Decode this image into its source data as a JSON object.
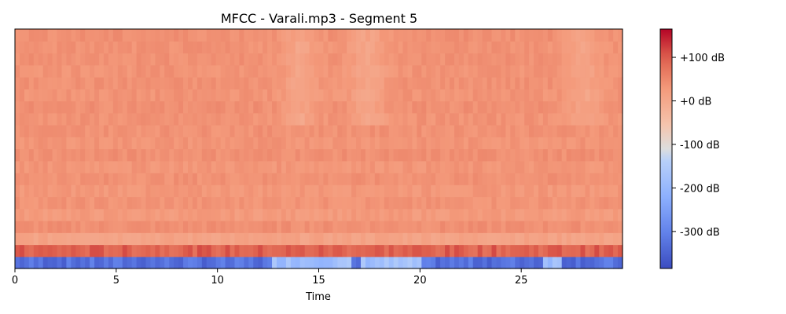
{
  "chart_data": {
    "type": "heatmap",
    "title": "MFCC - Varali.mp3 - Segment 5",
    "xlabel": "Time",
    "ylabel": "",
    "xlim": [
      0,
      30
    ],
    "x_ticks": [
      0,
      5,
      10,
      15,
      20,
      25
    ],
    "n_coefficients": 20,
    "colormap": "coolwarm",
    "value_range": [
      -385,
      165
    ],
    "colorbar": {
      "ticks": [
        100,
        0,
        -100,
        -200,
        -300
      ],
      "tick_labels": [
        "+100 dB",
        "+0 dB",
        "-100 dB",
        "-200 dB",
        "-300 dB"
      ],
      "unit": "dB"
    },
    "approx_row_means_dB": [
      -310,
      90,
      10,
      40,
      25,
      35,
      30,
      38,
      32,
      40,
      34,
      38,
      36,
      40,
      35,
      38,
      36,
      39,
      37,
      40
    ],
    "notes": "Approximate reading; row 0 is lowest coefficient (bottom)."
  }
}
